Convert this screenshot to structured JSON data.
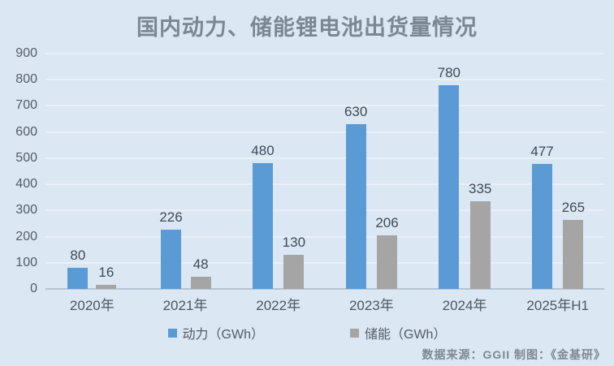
{
  "title": "国内动力、储能锂电池出货量情况",
  "source_note": "数据来源：GGII  制图：《金基研》",
  "chart_data": {
    "type": "bar",
    "title": "国内动力、储能锂电池出货量情况",
    "categories": [
      "2020年",
      "2021年",
      "2022年",
      "2023年",
      "2024年",
      "2025年H1"
    ],
    "series": [
      {
        "name": "动力（GWh）",
        "color": "#5b9bd5",
        "values": [
          80,
          226,
          480,
          630,
          780,
          477
        ]
      },
      {
        "name": "储能（GWh）",
        "color": "#a5a5a5",
        "values": [
          16,
          48,
          130,
          206,
          335,
          265
        ]
      }
    ],
    "xlabel": "",
    "ylabel": "",
    "ylim": [
      0,
      900
    ],
    "ytick_step": 100,
    "grid": true,
    "legend_position": "bottom",
    "source": "数据来源：GGII  制图：《金基研》"
  },
  "colors": {
    "background": "#dbe7f2",
    "bar_power": "#5b9bd5",
    "bar_storage": "#a5a5a5",
    "gridline": "#e9f0f8",
    "axis_line": "#b6c4d3",
    "title_text": "#7b8894",
    "tick_text": "#535d66",
    "value_label_text": "#3f4a55",
    "source_text": "#7d8893"
  }
}
